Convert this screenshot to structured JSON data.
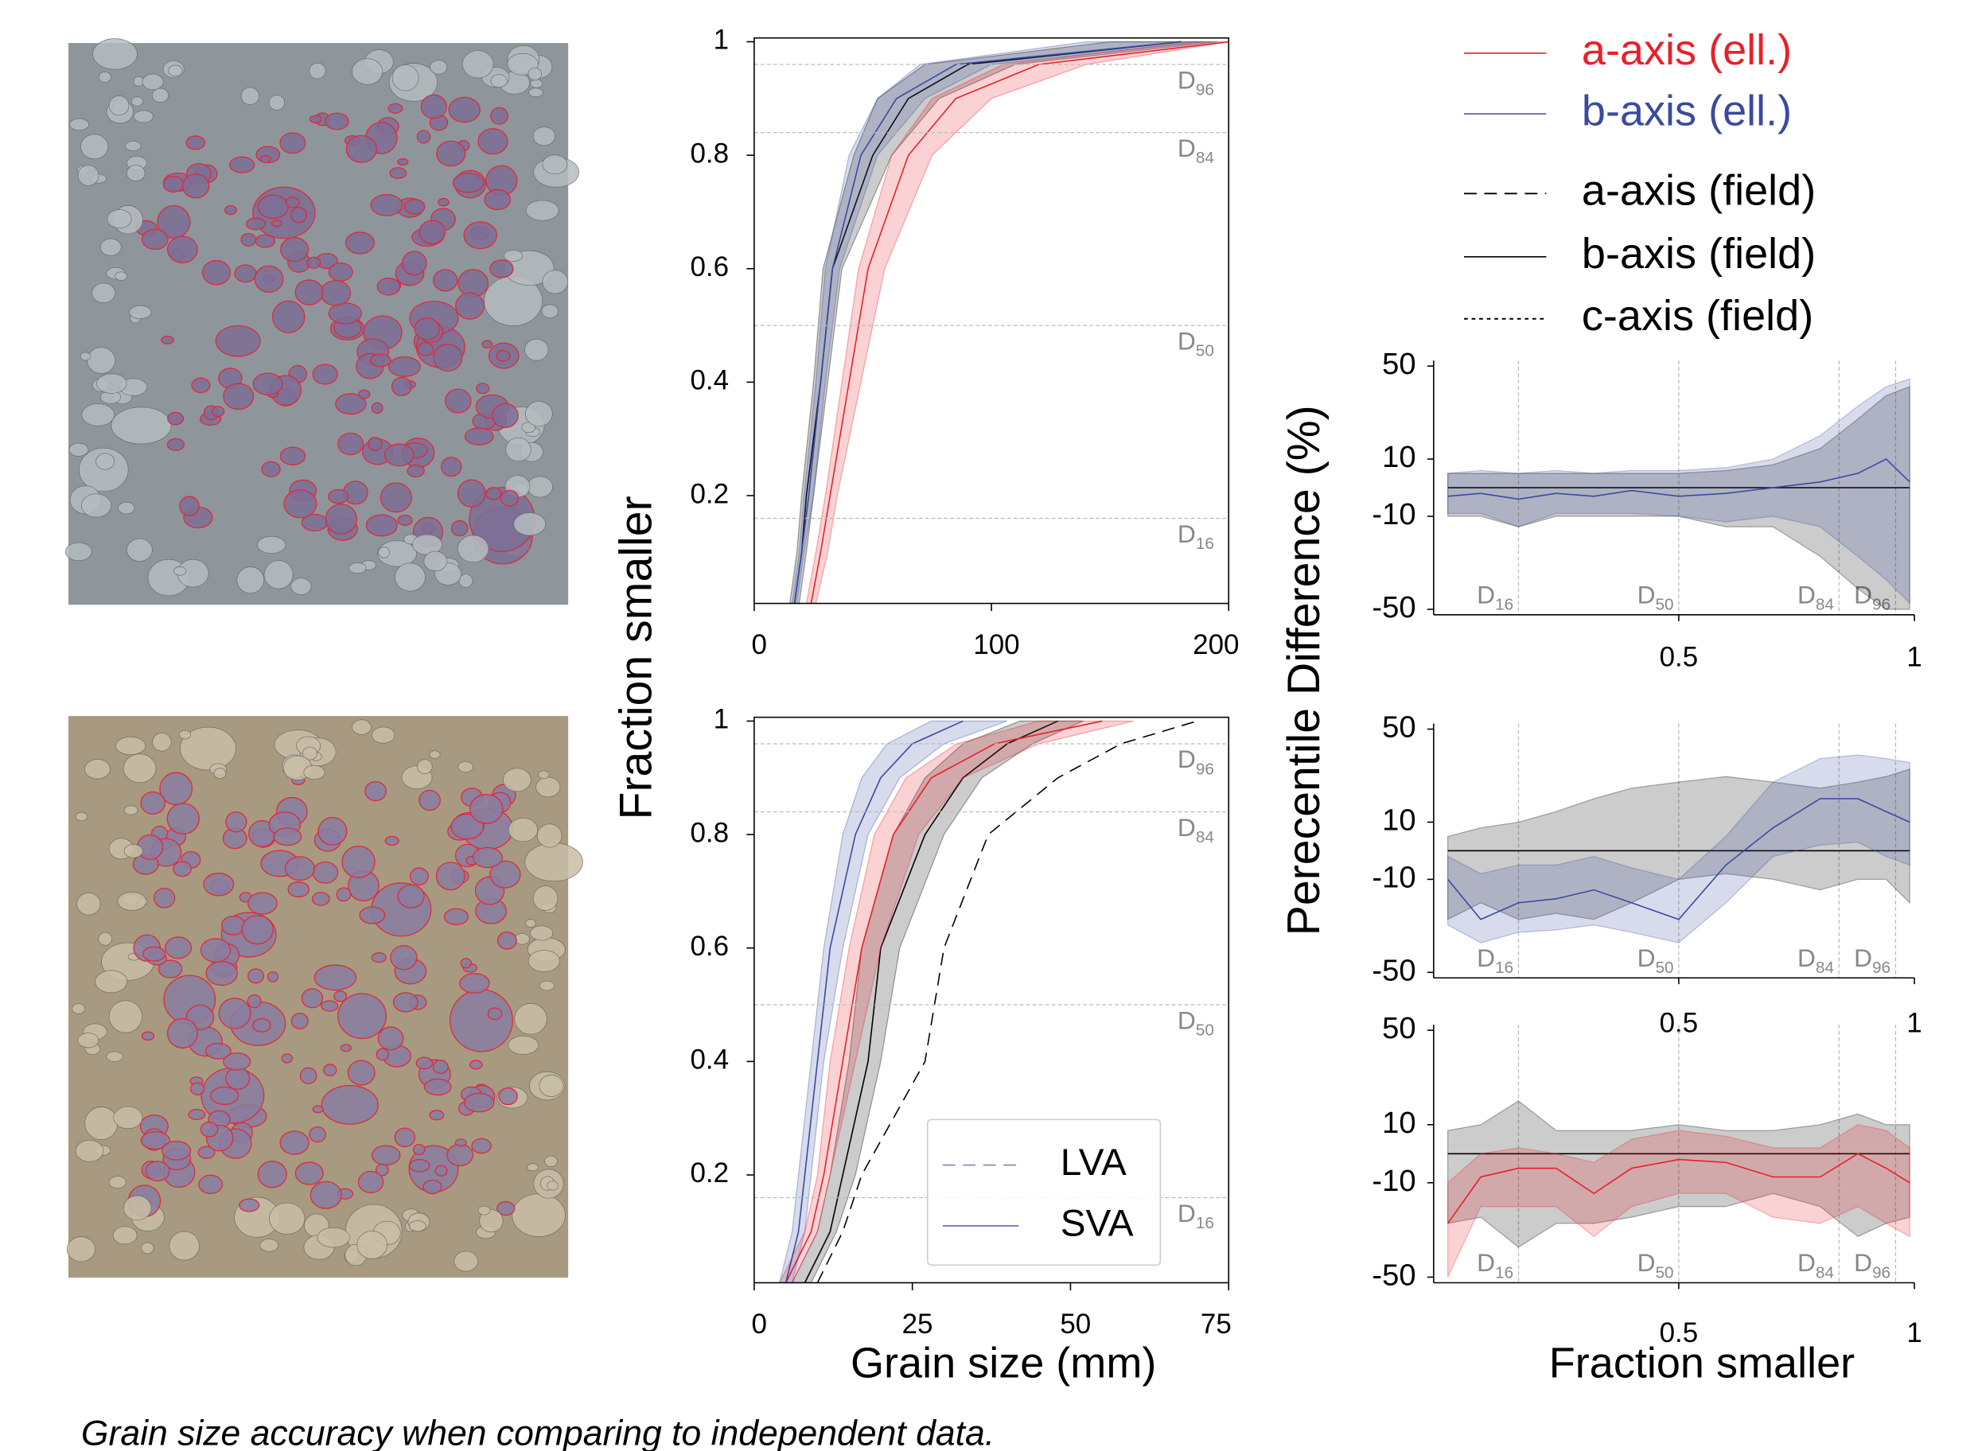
{
  "chart_data": [
    {
      "type": "line",
      "xlim": [
        0,
        200
      ],
      "xticks": [
        0,
        100,
        200
      ],
      "ylim": [
        0.01,
        1
      ],
      "yticks": [
        0.2,
        0.4,
        0.6,
        0.8,
        1
      ],
      "y": [
        0.01,
        0.1,
        0.2,
        0.4,
        0.6,
        0.8,
        0.9,
        0.96,
        1
      ],
      "series": [
        {
          "name": "b-axis (field)",
          "values": [
            17,
            20,
            22,
            28,
            33,
            50,
            65,
            90,
            180
          ],
          "lower": [
            15,
            18,
            20,
            25,
            29,
            42,
            52,
            72,
            150
          ],
          "upper": [
            19,
            22,
            25,
            31,
            37,
            58,
            78,
            110,
            195
          ]
        },
        {
          "name": "a-axis (ell.)",
          "values": [
            24,
            28,
            32,
            40,
            48,
            65,
            85,
            120,
            200
          ],
          "lower": [
            22,
            26,
            30,
            37,
            44,
            58,
            75,
            105,
            185
          ],
          "upper": [
            26,
            31,
            35,
            45,
            55,
            75,
            100,
            140,
            200
          ]
        },
        {
          "name": "b-axis (ell.)",
          "values": [
            17,
            20,
            23,
            28,
            33,
            45,
            60,
            85,
            180
          ],
          "lower": [
            16,
            19,
            21,
            26,
            30,
            40,
            52,
            70,
            140
          ],
          "upper": [
            18,
            21,
            25,
            30,
            36,
            52,
            72,
            100,
            190
          ]
        }
      ]
    },
    {
      "type": "line",
      "xlim": [
        0,
        75
      ],
      "xticks": [
        0,
        25,
        50,
        75
      ],
      "ylim": [
        0.01,
        1
      ],
      "yticks": [
        0.2,
        0.4,
        0.6,
        0.8,
        1
      ],
      "y": [
        0.01,
        0.1,
        0.2,
        0.4,
        0.6,
        0.8,
        0.9,
        0.96,
        1
      ],
      "series": [
        {
          "name": "b-axis (field)",
          "values": [
            8,
            12,
            14,
            18,
            20,
            27,
            33,
            40,
            48
          ],
          "lower": [
            6,
            10,
            12,
            15,
            17,
            22,
            27,
            33,
            42
          ],
          "upper": [
            9,
            13,
            16,
            20,
            23,
            30,
            36,
            44,
            52
          ]
        },
        {
          "name": "a-axis (ell.)",
          "values": [
            5,
            9,
            11,
            14,
            17,
            22,
            28,
            38,
            55
          ],
          "lower": [
            4,
            8,
            10,
            12,
            15,
            19,
            24,
            32,
            45
          ],
          "upper": [
            6,
            10,
            12,
            16,
            20,
            26,
            33,
            45,
            60
          ]
        },
        {
          "name": "b-axis (ell.)",
          "values": [
            5,
            7,
            8,
            10,
            12,
            16,
            20,
            25,
            33
          ],
          "lower": [
            4,
            6,
            7,
            9,
            11,
            14,
            17,
            21,
            28
          ],
          "upper": [
            6,
            8,
            9,
            11,
            14,
            18,
            23,
            30,
            40
          ]
        },
        {
          "name": "a-axis (field)",
          "values": [
            10,
            14,
            17,
            27,
            30,
            37,
            48,
            58,
            70
          ]
        }
      ],
      "legend": [
        {
          "name": "LVA",
          "color": "#8a80b4",
          "style": "dashed"
        },
        {
          "name": "SVA",
          "color": "#6a5acd",
          "style": "solid"
        }
      ]
    },
    {
      "type": "area",
      "xlim": [
        -0.02,
        1
      ],
      "xticks": [
        0.5,
        1
      ],
      "ylim": [
        -55,
        55
      ],
      "yticks": [
        50,
        10,
        -10,
        -50
      ],
      "yscale": "symlog",
      "linthresh": 10,
      "linscale": 0.215,
      "x": [
        0.01,
        0.08,
        0.16,
        0.24,
        0.32,
        0.4,
        0.5,
        0.6,
        0.7,
        0.8,
        0.88,
        0.94,
        0.99
      ],
      "series": [
        {
          "name": "b-axis (field)",
          "values": [
            0,
            0,
            0,
            0,
            0,
            0,
            0,
            0,
            0,
            0,
            0,
            0,
            0
          ],
          "lower": [
            -10,
            -10,
            -12,
            -10,
            -10,
            -10,
            -10,
            -12,
            -12,
            -20,
            -35,
            -50,
            -50
          ],
          "upper": [
            5,
            5,
            5,
            5,
            5,
            5,
            5,
            6,
            8,
            12,
            20,
            30,
            35
          ]
        },
        {
          "name": "b-axis (ell.)",
          "values": [
            -3,
            -2,
            -4,
            -2,
            -3,
            -1,
            -3,
            -2,
            0,
            2,
            5,
            10,
            2
          ],
          "lower": [
            -9,
            -9,
            -12,
            -9,
            -9,
            -9,
            -10,
            -11,
            -10,
            -12,
            -20,
            -30,
            -45
          ],
          "upper": [
            5,
            6,
            5,
            6,
            5,
            6,
            6,
            7,
            10,
            15,
            25,
            35,
            40
          ]
        }
      ]
    },
    {
      "type": "area",
      "xlim": [
        -0.02,
        1
      ],
      "xticks": [
        0.5,
        1
      ],
      "ylim": [
        -55,
        55
      ],
      "yticks": [
        50,
        10,
        -10,
        -50
      ],
      "yscale": "symlog",
      "linthresh": 10,
      "linscale": 0.215,
      "x": [
        0.01,
        0.08,
        0.16,
        0.24,
        0.32,
        0.4,
        0.5,
        0.6,
        0.7,
        0.8,
        0.88,
        0.94,
        0.99
      ],
      "series": [
        {
          "name": "b-axis (field)",
          "values": [
            0,
            0,
            0,
            0,
            0,
            0,
            0,
            0,
            0,
            0,
            0,
            0,
            0
          ],
          "lower": [
            -20,
            -15,
            -20,
            -18,
            -20,
            -15,
            -10,
            -8,
            -10,
            -12,
            -10,
            -10,
            -15
          ],
          "upper": [
            5,
            8,
            10,
            12,
            15,
            18,
            20,
            22,
            20,
            18,
            20,
            22,
            25
          ]
        },
        {
          "name": "b-axis (ell.)",
          "values": [
            -10,
            -20,
            -15,
            -14,
            -12,
            -15,
            -20,
            -5,
            8,
            15,
            15,
            12,
            10
          ],
          "lower": [
            -22,
            -30,
            -25,
            -24,
            -22,
            -25,
            -30,
            -15,
            -2,
            2,
            3,
            -2,
            -5
          ],
          "upper": [
            -2,
            -8,
            -5,
            -5,
            -2,
            -6,
            -10,
            5,
            20,
            30,
            32,
            30,
            28
          ]
        }
      ]
    },
    {
      "type": "area",
      "xlim": [
        -0.02,
        1
      ],
      "xticks": [
        0.5,
        1
      ],
      "ylim": [
        -55,
        55
      ],
      "yticks": [
        50,
        10,
        -10,
        -50
      ],
      "yscale": "symlog",
      "linthresh": 10,
      "linscale": 0.215,
      "x": [
        0.01,
        0.08,
        0.16,
        0.24,
        0.32,
        0.4,
        0.5,
        0.6,
        0.7,
        0.8,
        0.88,
        0.94,
        0.99
      ],
      "series": [
        {
          "name": "b-axis (field)",
          "values": [
            0,
            0,
            0,
            0,
            0,
            0,
            0,
            0,
            0,
            0,
            0,
            0,
            0
          ],
          "lower": [
            -20,
            -18,
            -30,
            -20,
            -20,
            -18,
            -15,
            -15,
            -12,
            -15,
            -25,
            -20,
            -18
          ],
          "upper": [
            8,
            10,
            15,
            8,
            8,
            8,
            10,
            8,
            8,
            10,
            12,
            10,
            10
          ]
        },
        {
          "name": "a-axis (ell.)",
          "values": [
            -20,
            -8,
            -5,
            -5,
            -12,
            -5,
            -2,
            -3,
            -8,
            -8,
            0,
            -5,
            -10
          ],
          "lower": [
            -50,
            -15,
            -15,
            -15,
            -25,
            -15,
            -12,
            -12,
            -18,
            -20,
            -15,
            -20,
            -25
          ],
          "upper": [
            -10,
            0,
            2,
            0,
            -3,
            5,
            8,
            6,
            2,
            2,
            10,
            8,
            2
          ]
        }
      ]
    }
  ],
  "legend": [
    {
      "name": "a-axis (ell.)",
      "color": "#e8202a",
      "style": "solid"
    },
    {
      "name": "b-axis (ell.)",
      "color": "#3a4aa0",
      "style": "solid"
    },
    {
      "name": "a-axis (field)",
      "color": "#000000",
      "style": "dashed"
    },
    {
      "name": "b-axis (field)",
      "color": "#000000",
      "style": "solid"
    },
    {
      "name": "c-axis (field)",
      "color": "#000000",
      "style": "dotted"
    }
  ],
  "percentiles": [
    {
      "value": 0.16,
      "label": "D16"
    },
    {
      "value": 0.5,
      "label": "D50"
    },
    {
      "value": 0.84,
      "label": "D84"
    },
    {
      "value": 0.96,
      "label": "D96"
    }
  ],
  "labels": {
    "cdf_y": "Fraction smaller",
    "cdf_x": "Grain size (mm)",
    "diff_y": "Perecentile Difference (%)",
    "diff_x": "Fraction smaller"
  },
  "caption": "Grain size accuracy when comparing to independent data."
}
